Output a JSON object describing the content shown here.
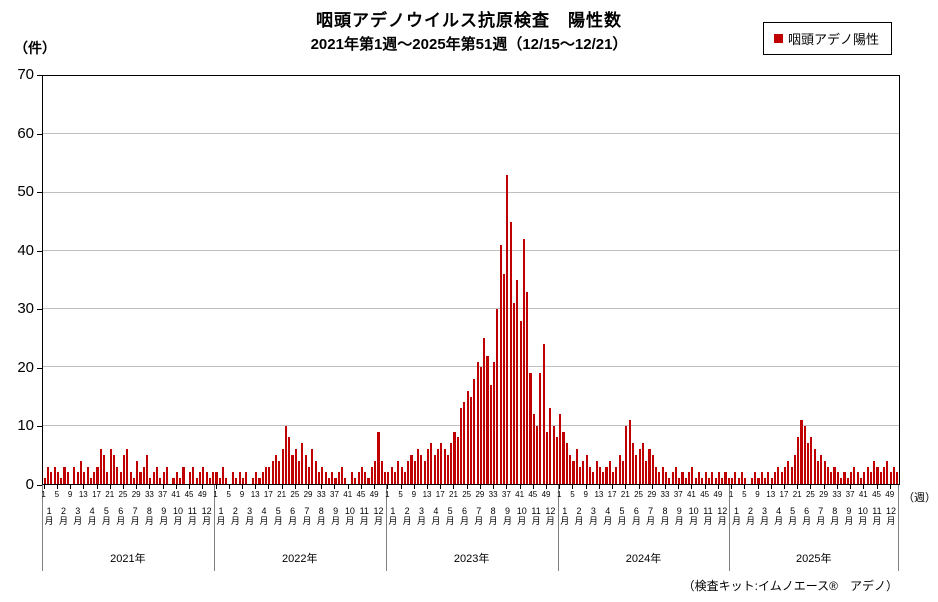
{
  "title": "咽頭アデノウイルス抗原検査　陽性数",
  "subtitle": "2021年第1週～2025年第51週（12/15～12/21）",
  "y_axis": {
    "unit_label": "（件）",
    "ticks": [
      0,
      10,
      20,
      30,
      40,
      50,
      60,
      70
    ],
    "max": 70
  },
  "x_axis": {
    "week_label": "（週）"
  },
  "legend": {
    "label": "咽頭アデノ陽性",
    "color": "#c00000"
  },
  "footnote": "（検査キット:イムノエース®　アデノ）",
  "chart_data": {
    "type": "bar",
    "title": "咽頭アデノウイルス抗原検査　陽性数",
    "subtitle": "2021年第1週～2025年第51週（12/15～12/21）",
    "ylabel": "（件）",
    "xlabel": "（週）",
    "ylim": [
      0,
      70
    ],
    "y_ticks": [
      0,
      10,
      20,
      30,
      40,
      50,
      60,
      70
    ],
    "grid": true,
    "legend_position": "top-right",
    "series_name": "咽頭アデノ陽性",
    "bar_color": "#c00000",
    "week_tick_labels": [
      1,
      5,
      9,
      13,
      17,
      21,
      25,
      29,
      33,
      37,
      41,
      45,
      49
    ],
    "month_labels": [
      "1",
      "2",
      "3",
      "4",
      "5",
      "6",
      "7",
      "8",
      "9",
      "10",
      "11",
      "12"
    ],
    "month_suffix": "月",
    "years": [
      {
        "label": "2021年",
        "values": [
          1,
          3,
          2,
          3,
          2,
          1,
          3,
          2,
          0,
          3,
          2,
          4,
          2,
          3,
          1,
          2,
          3,
          6,
          5,
          2,
          6,
          5,
          3,
          2,
          5,
          6,
          2,
          1,
          4,
          2,
          3,
          5,
          1,
          2,
          3,
          1,
          2,
          3,
          0,
          1,
          2,
          1,
          3,
          0,
          2,
          3,
          1,
          2,
          3,
          2,
          1,
          2
        ]
      },
      {
        "label": "2022年",
        "values": [
          2,
          1,
          3,
          1,
          0,
          2,
          1,
          2,
          1,
          2,
          0,
          1,
          2,
          1,
          2,
          3,
          3,
          4,
          5,
          4,
          6,
          10,
          8,
          5,
          6,
          4,
          7,
          5,
          3,
          6,
          4,
          2,
          3,
          2,
          1,
          2,
          1,
          2,
          3,
          1,
          0,
          2,
          1,
          2,
          3,
          2,
          1,
          3,
          4,
          9,
          4,
          2
        ]
      },
      {
        "label": "2023年",
        "values": [
          2,
          3,
          2,
          4,
          3,
          2,
          4,
          5,
          4,
          6,
          5,
          4,
          6,
          7,
          5,
          6,
          7,
          6,
          5,
          7,
          9,
          8,
          13,
          14,
          16,
          15,
          18,
          21,
          20,
          25,
          22,
          17,
          21,
          30,
          41,
          36,
          53,
          45,
          31,
          35,
          28,
          42,
          33,
          19,
          12,
          10,
          19,
          24,
          9,
          13,
          10,
          8
        ]
      },
      {
        "label": "2024年",
        "values": [
          12,
          9,
          7,
          5,
          4,
          6,
          3,
          4,
          5,
          3,
          2,
          4,
          3,
          2,
          3,
          4,
          2,
          3,
          5,
          4,
          10,
          11,
          7,
          5,
          6,
          7,
          4,
          6,
          5,
          3,
          2,
          3,
          2,
          1,
          2,
          3,
          1,
          2,
          1,
          2,
          3,
          1,
          2,
          1,
          2,
          1,
          2,
          1,
          2,
          1,
          2,
          1
        ]
      },
      {
        "label": "2025年",
        "values": [
          1,
          2,
          1,
          2,
          1,
          0,
          1,
          2,
          1,
          2,
          1,
          2,
          1,
          2,
          3,
          2,
          3,
          4,
          3,
          5,
          8,
          11,
          10,
          7,
          8,
          6,
          4,
          5,
          4,
          3,
          2,
          3,
          2,
          1,
          2,
          1,
          2,
          3,
          2,
          1,
          2,
          3,
          2,
          4,
          3,
          2,
          3,
          4,
          2,
          3,
          2
        ]
      }
    ]
  }
}
